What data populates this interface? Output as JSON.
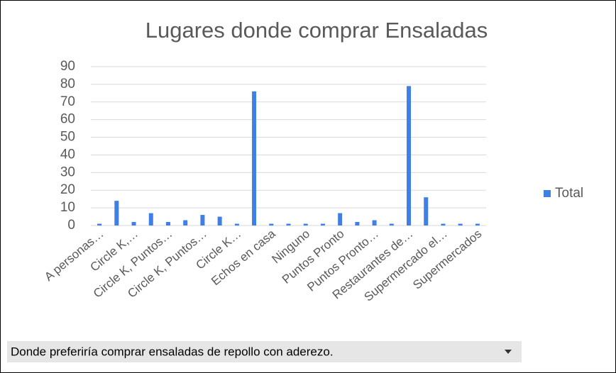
{
  "chart_data": {
    "type": "bar",
    "title": "Lugares donde comprar Ensaladas",
    "categories": [
      "A personas…",
      null,
      "Circle K,…",
      null,
      "Circle K, Puntos…",
      null,
      "Circle K, Puntos…",
      null,
      "Circle K…",
      null,
      "Echos en casa",
      null,
      "Ninguno",
      null,
      "Puntos Pronto",
      null,
      "Puntos Pronto…",
      null,
      "Restaurantes de…",
      null,
      "Supermercado el…",
      null,
      "Supermercados"
    ],
    "series": [
      {
        "name": "Total",
        "color": "#3f7fe6",
        "values": [
          1,
          14,
          2,
          7,
          2,
          3,
          6,
          5,
          1,
          76,
          1,
          1,
          1,
          1,
          7,
          2,
          3,
          1,
          79,
          16,
          1,
          1,
          1
        ]
      }
    ],
    "ylim": [
      0,
      90
    ],
    "yticks": [
      0,
      10,
      20,
      30,
      40,
      50,
      60,
      70,
      80,
      90
    ],
    "grid": true,
    "legend": "right"
  },
  "filter": {
    "label": "Donde preferiría comprar ensaladas de repollo con aderezo."
  }
}
